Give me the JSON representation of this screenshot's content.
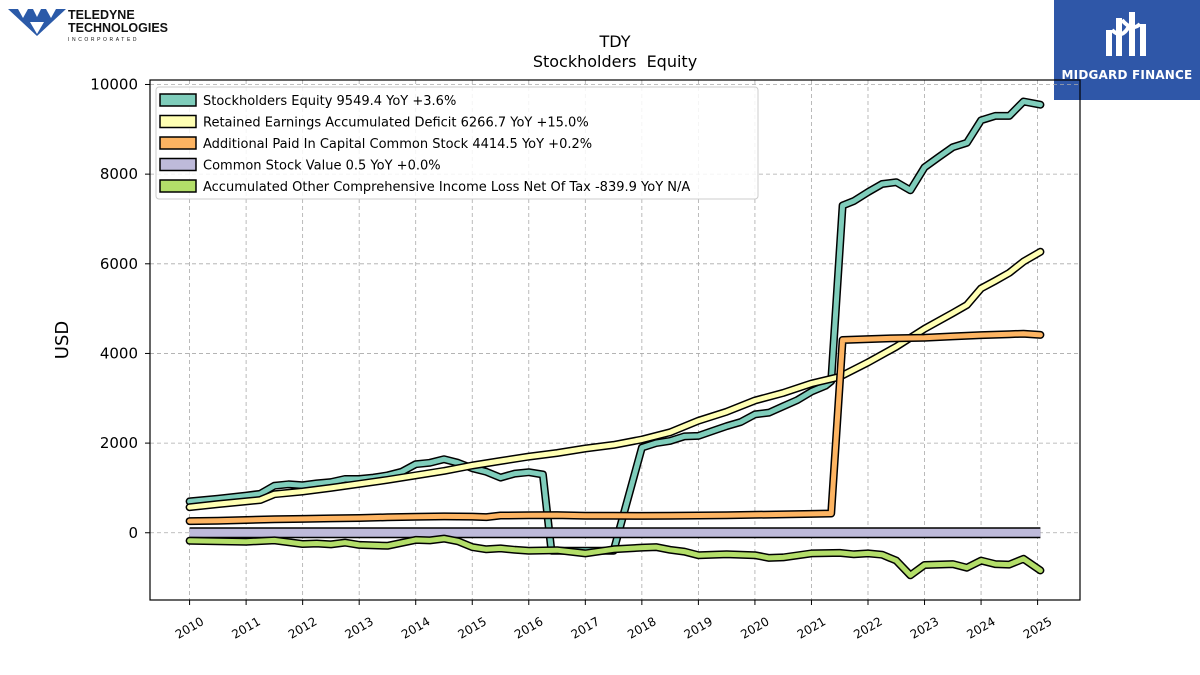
{
  "brand": {
    "left_logo_line1": "TELEDYNE",
    "left_logo_line2": "TECHNOLOGIES",
    "left_logo_line3": "INCORPORATED",
    "right_logo_text": "MIDGARD FINANCE"
  },
  "chart_data": {
    "type": "line",
    "title": "TDY",
    "subtitle": "Stockholders  Equity",
    "ylabel": "USD",
    "xlabel": "",
    "ylim": [
      -1500,
      10100
    ],
    "xlim": [
      2009.3,
      2025.75
    ],
    "yticks": [
      0,
      2000,
      4000,
      6000,
      8000,
      10000
    ],
    "xticks": [
      "2010",
      "2011",
      "2012",
      "2013",
      "2014",
      "2015",
      "2016",
      "2017",
      "2018",
      "2019",
      "2020",
      "2021",
      "2022",
      "2023",
      "2024",
      "2025"
    ],
    "grid": true,
    "legend_position": "top-left",
    "series": [
      {
        "name": "Stockholders Equity  9549.4 YoY +3.6%",
        "color": "#7fcdbb",
        "points": [
          [
            2010.0,
            700
          ],
          [
            2010.5,
            760
          ],
          [
            2011.0,
            830
          ],
          [
            2011.25,
            870
          ],
          [
            2011.5,
            1050
          ],
          [
            2011.75,
            1080
          ],
          [
            2012.0,
            1060
          ],
          [
            2012.25,
            1100
          ],
          [
            2012.5,
            1130
          ],
          [
            2012.75,
            1200
          ],
          [
            2013.0,
            1200
          ],
          [
            2013.25,
            1230
          ],
          [
            2013.5,
            1280
          ],
          [
            2013.75,
            1360
          ],
          [
            2014.0,
            1530
          ],
          [
            2014.25,
            1560
          ],
          [
            2014.5,
            1640
          ],
          [
            2014.75,
            1560
          ],
          [
            2015.0,
            1440
          ],
          [
            2015.25,
            1360
          ],
          [
            2015.5,
            1230
          ],
          [
            2015.75,
            1320
          ],
          [
            2016.0,
            1350
          ],
          [
            2016.25,
            1300
          ],
          [
            2016.4,
            -400
          ],
          [
            2017.5,
            -400
          ],
          [
            2018.0,
            1900
          ],
          [
            2018.25,
            2000
          ],
          [
            2018.5,
            2050
          ],
          [
            2018.75,
            2150
          ],
          [
            2019.0,
            2160
          ],
          [
            2019.25,
            2270
          ],
          [
            2019.5,
            2380
          ],
          [
            2019.75,
            2470
          ],
          [
            2020.0,
            2640
          ],
          [
            2020.25,
            2680
          ],
          [
            2020.5,
            2820
          ],
          [
            2020.75,
            2960
          ],
          [
            2021.0,
            3150
          ],
          [
            2021.25,
            3280
          ],
          [
            2021.35,
            3380
          ],
          [
            2021.55,
            7300
          ],
          [
            2021.75,
            7400
          ],
          [
            2022.0,
            7600
          ],
          [
            2022.25,
            7780
          ],
          [
            2022.5,
            7820
          ],
          [
            2022.75,
            7640
          ],
          [
            2023.0,
            8150
          ],
          [
            2023.25,
            8380
          ],
          [
            2023.5,
            8600
          ],
          [
            2023.75,
            8700
          ],
          [
            2024.0,
            9200
          ],
          [
            2024.25,
            9300
          ],
          [
            2024.5,
            9300
          ],
          [
            2024.75,
            9620
          ],
          [
            2025.05,
            9549
          ]
        ]
      },
      {
        "name": "Retained Earnings Accumulated Deficit  6266.7 YoY +15.0%",
        "color": "#ffffb3",
        "points": [
          [
            2010.0,
            570
          ],
          [
            2010.5,
            640
          ],
          [
            2011.0,
            700
          ],
          [
            2011.25,
            730
          ],
          [
            2011.5,
            860
          ],
          [
            2012.0,
            920
          ],
          [
            2012.5,
            1000
          ],
          [
            2013.0,
            1090
          ],
          [
            2013.5,
            1180
          ],
          [
            2014.0,
            1280
          ],
          [
            2014.5,
            1380
          ],
          [
            2015.0,
            1500
          ],
          [
            2015.5,
            1600
          ],
          [
            2016.0,
            1700
          ],
          [
            2016.5,
            1780
          ],
          [
            2017.0,
            1880
          ],
          [
            2017.5,
            1960
          ],
          [
            2018.0,
            2080
          ],
          [
            2018.5,
            2240
          ],
          [
            2019.0,
            2500
          ],
          [
            2019.5,
            2700
          ],
          [
            2020.0,
            2950
          ],
          [
            2020.5,
            3120
          ],
          [
            2021.0,
            3330
          ],
          [
            2021.5,
            3480
          ],
          [
            2022.0,
            3800
          ],
          [
            2022.5,
            4150
          ],
          [
            2023.0,
            4550
          ],
          [
            2023.5,
            4900
          ],
          [
            2023.75,
            5080
          ],
          [
            2024.0,
            5450
          ],
          [
            2024.25,
            5620
          ],
          [
            2024.5,
            5800
          ],
          [
            2024.75,
            6050
          ],
          [
            2025.05,
            6267
          ]
        ]
      },
      {
        "name": "Additional Paid In Capital Common Stock  4414.5 YoY +0.2%",
        "color": "#fdb462",
        "points": [
          [
            2010.0,
            260
          ],
          [
            2010.5,
            270
          ],
          [
            2011.0,
            285
          ],
          [
            2011.5,
            300
          ],
          [
            2012.0,
            310
          ],
          [
            2012.5,
            320
          ],
          [
            2013.0,
            330
          ],
          [
            2013.5,
            345
          ],
          [
            2014.0,
            355
          ],
          [
            2014.5,
            365
          ],
          [
            2015.0,
            360
          ],
          [
            2015.25,
            350
          ],
          [
            2015.5,
            385
          ],
          [
            2016.0,
            390
          ],
          [
            2016.5,
            395
          ],
          [
            2017.0,
            380
          ],
          [
            2017.5,
            380
          ],
          [
            2018.0,
            375
          ],
          [
            2018.5,
            380
          ],
          [
            2019.0,
            385
          ],
          [
            2019.5,
            390
          ],
          [
            2020.0,
            400
          ],
          [
            2020.5,
            410
          ],
          [
            2021.0,
            420
          ],
          [
            2021.35,
            430
          ],
          [
            2021.55,
            4300
          ],
          [
            2022.0,
            4320
          ],
          [
            2022.5,
            4340
          ],
          [
            2023.0,
            4350
          ],
          [
            2023.5,
            4380
          ],
          [
            2024.0,
            4410
          ],
          [
            2024.5,
            4430
          ],
          [
            2024.75,
            4440
          ],
          [
            2025.05,
            4414
          ]
        ]
      },
      {
        "name": "Common Stock Value  0.5 YoY +0.0%",
        "color": "#bebada",
        "points": [
          [
            2010.0,
            0
          ],
          [
            2025.05,
            0
          ]
        ]
      },
      {
        "name": "Accumulated Other Comprehensive Income Loss Net Of Tax  -839.9 YoY N/A",
        "color": "#b3de69",
        "points": [
          [
            2010.0,
            -180
          ],
          [
            2010.5,
            -190
          ],
          [
            2011.0,
            -200
          ],
          [
            2011.5,
            -170
          ],
          [
            2012.0,
            -250
          ],
          [
            2012.25,
            -240
          ],
          [
            2012.5,
            -260
          ],
          [
            2012.75,
            -220
          ],
          [
            2013.0,
            -270
          ],
          [
            2013.5,
            -290
          ],
          [
            2014.0,
            -160
          ],
          [
            2014.25,
            -170
          ],
          [
            2014.5,
            -130
          ],
          [
            2014.75,
            -190
          ],
          [
            2015.0,
            -320
          ],
          [
            2015.25,
            -370
          ],
          [
            2015.5,
            -350
          ],
          [
            2015.75,
            -380
          ],
          [
            2016.0,
            -400
          ],
          [
            2016.5,
            -390
          ],
          [
            2017.0,
            -460
          ],
          [
            2017.5,
            -370
          ],
          [
            2018.0,
            -330
          ],
          [
            2018.25,
            -320
          ],
          [
            2018.5,
            -380
          ],
          [
            2018.75,
            -420
          ],
          [
            2019.0,
            -500
          ],
          [
            2019.5,
            -480
          ],
          [
            2020.0,
            -500
          ],
          [
            2020.25,
            -560
          ],
          [
            2020.5,
            -550
          ],
          [
            2021.0,
            -460
          ],
          [
            2021.5,
            -450
          ],
          [
            2021.75,
            -480
          ],
          [
            2022.0,
            -460
          ],
          [
            2022.25,
            -490
          ],
          [
            2022.5,
            -620
          ],
          [
            2022.75,
            -950
          ],
          [
            2023.0,
            -720
          ],
          [
            2023.5,
            -700
          ],
          [
            2023.75,
            -780
          ],
          [
            2024.0,
            -620
          ],
          [
            2024.25,
            -700
          ],
          [
            2024.5,
            -710
          ],
          [
            2024.75,
            -580
          ],
          [
            2025.05,
            -840
          ]
        ]
      }
    ]
  }
}
